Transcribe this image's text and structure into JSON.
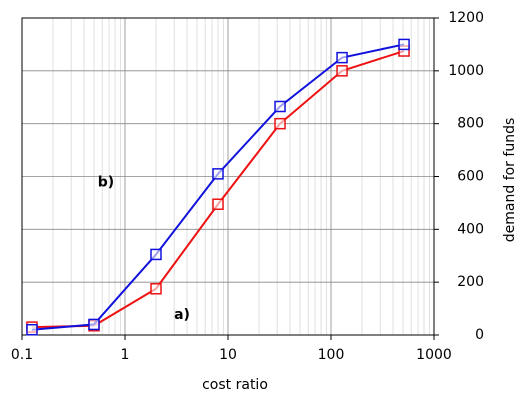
{
  "chart_data": {
    "type": "line",
    "x_label": "cost ratio",
    "y_label": "demand for funds",
    "x": [
      0.125,
      0.5,
      2,
      8,
      32,
      128,
      512
    ],
    "series": [
      {
        "name": "a)",
        "color": "#ee1111",
        "values": [
          30,
          35,
          175,
          495,
          800,
          1000,
          1075
        ]
      },
      {
        "name": "b)",
        "color": "#1111dd",
        "values": [
          20,
          40,
          305,
          610,
          865,
          1050,
          1100
        ]
      }
    ],
    "xlim": [
      0.1,
      1000
    ],
    "xticks": [
      0.1,
      1,
      10,
      100,
      1000
    ],
    "xscale": "log",
    "ylim": [
      0,
      1200
    ],
    "yticks": [
      0,
      200,
      400,
      600,
      800,
      1000,
      1200
    ],
    "y_axis_side": "right",
    "grid": true,
    "minor_grid": true
  }
}
